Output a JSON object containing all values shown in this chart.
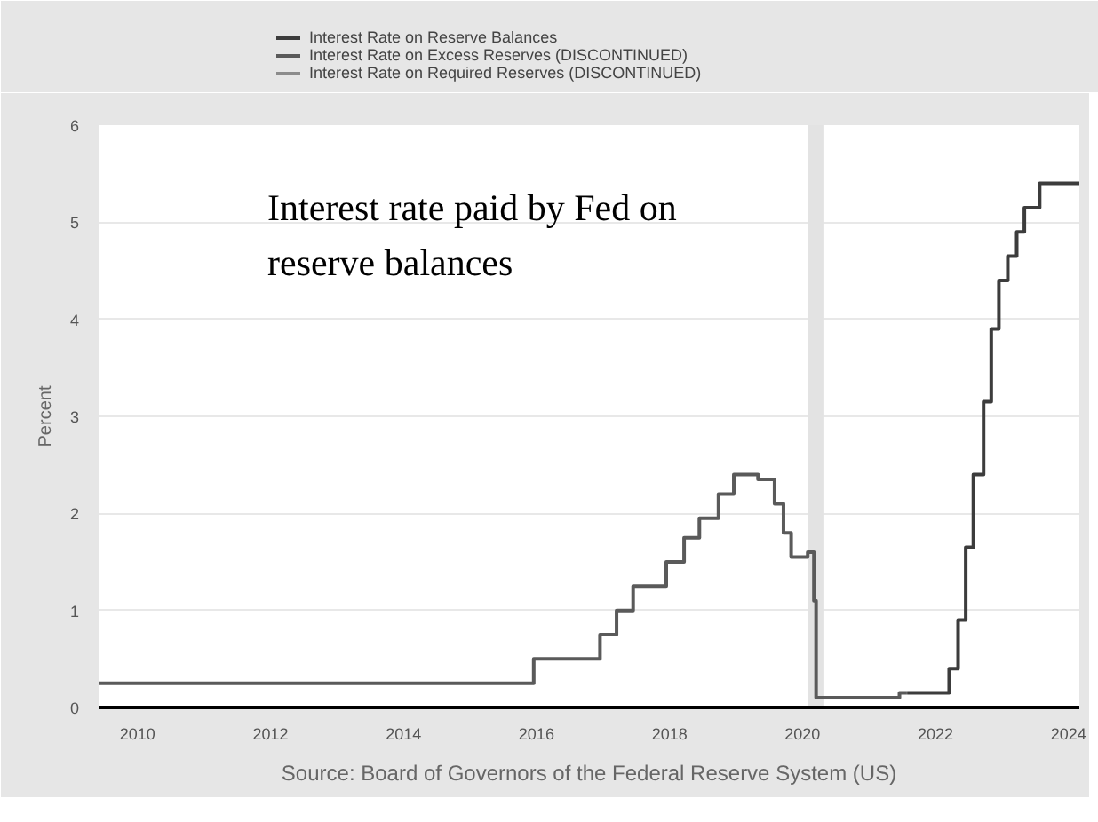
{
  "chart_data": {
    "type": "step",
    "ylabel": "Percent",
    "series": [
      {
        "name": "Interest Rate on Reserve Balances",
        "color": "#3c3c3c",
        "x": [
          "2021-07-29",
          "2022-03-17",
          "2022-05-05",
          "2022-06-16",
          "2022-07-28",
          "2022-09-22",
          "2022-11-03",
          "2022-12-15",
          "2023-02-02",
          "2023-03-23",
          "2023-05-04",
          "2023-07-27",
          "2024-03-01"
        ],
        "values": [
          0.15,
          0.4,
          0.9,
          1.65,
          2.4,
          3.15,
          3.9,
          4.4,
          4.65,
          4.9,
          5.15,
          5.4,
          5.4
        ]
      },
      {
        "name": "Interest Rate on Excess Reserves (DISCONTINUED)",
        "color": "#5a5a5a",
        "x": [
          "2009-06-01",
          "2015-12-17",
          "2016-12-15",
          "2017-03-16",
          "2017-06-15",
          "2017-12-14",
          "2018-03-22",
          "2018-06-14",
          "2018-09-27",
          "2018-12-20",
          "2019-05-02",
          "2019-08-01",
          "2019-09-19",
          "2019-10-31",
          "2020-01-30",
          "2020-03-04",
          "2020-03-16",
          "2021-06-17",
          "2021-07-28"
        ],
        "values": [
          0.25,
          0.5,
          0.75,
          1.0,
          1.25,
          1.5,
          1.75,
          1.95,
          2.2,
          2.4,
          2.35,
          2.1,
          1.8,
          1.55,
          1.6,
          1.1,
          0.1,
          0.15,
          0.15
        ]
      },
      {
        "name": "Interest Rate on Required Reserves (DISCONTINUED)",
        "color": "#8c8c8c"
      }
    ],
    "xlim": [
      "2009-06-01",
      "2024-03-01"
    ],
    "xticks": [
      {
        "value": "2010",
        "label": "2010"
      },
      {
        "value": "2012",
        "label": "2012"
      },
      {
        "value": "2014",
        "label": "2014"
      },
      {
        "value": "2016",
        "label": "2016"
      },
      {
        "value": "2018",
        "label": "2018"
      },
      {
        "value": "2020",
        "label": "2020"
      },
      {
        "value": "2022",
        "label": "2022"
      },
      {
        "value": "2024",
        "label": "2024"
      }
    ],
    "ylim": [
      0,
      6
    ],
    "yticks": [
      0,
      1,
      2,
      3,
      4,
      5,
      6
    ],
    "grid": "y",
    "legend": "top left",
    "bands": [
      {
        "axis": "x",
        "from": "2020-02-01",
        "to": "2020-04-30",
        "color": "#e3e3e3"
      }
    ],
    "annotations": [
      "Interest rate paid by Fed on reserve balances",
      "Source: Board of Governors of the Federal Reserve System (US)"
    ]
  }
}
